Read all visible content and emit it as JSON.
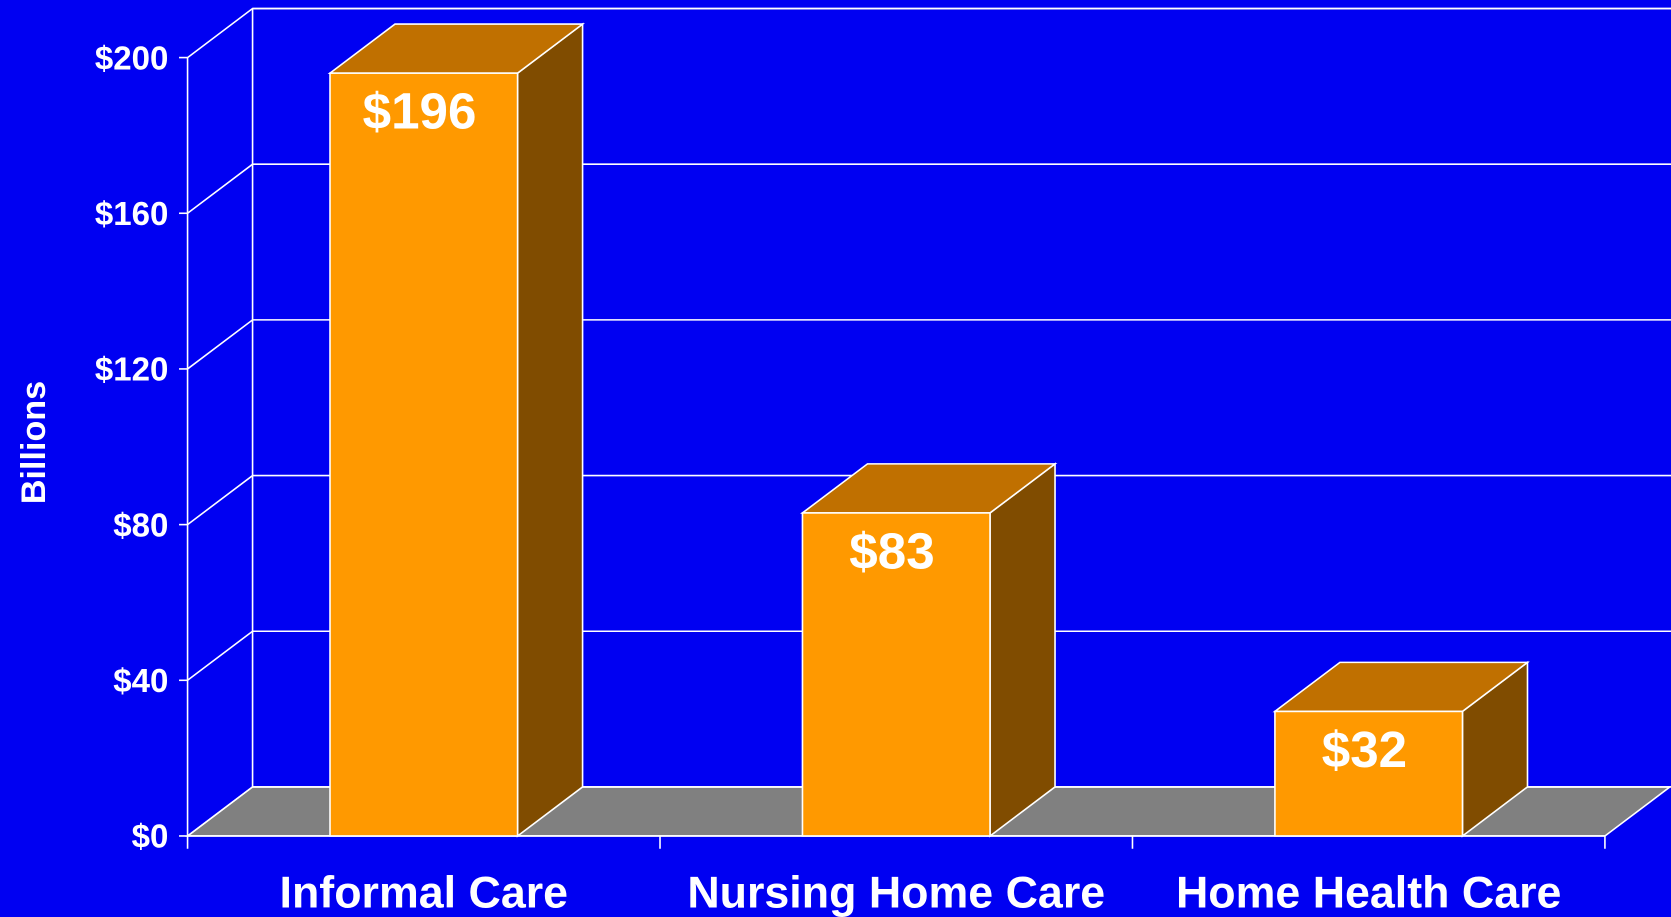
{
  "chart_data": {
    "type": "bar3d",
    "y_label": "Billions",
    "categories": [
      "Informal Care",
      "Nursing Home Care",
      "Home Health Care"
    ],
    "values": [
      196,
      83,
      32
    ],
    "value_labels": [
      "$196",
      "$83",
      "$32"
    ],
    "color": "#ff9900",
    "ylim": [
      0,
      200
    ],
    "yticks": [
      {
        "value": 0,
        "label": "$0"
      },
      {
        "value": 40,
        "label": "$40"
      },
      {
        "value": 80,
        "label": "$80"
      },
      {
        "value": 120,
        "label": "$120"
      },
      {
        "value": 160,
        "label": "$160"
      },
      {
        "value": 200,
        "label": "$200"
      }
    ],
    "grid": true
  }
}
